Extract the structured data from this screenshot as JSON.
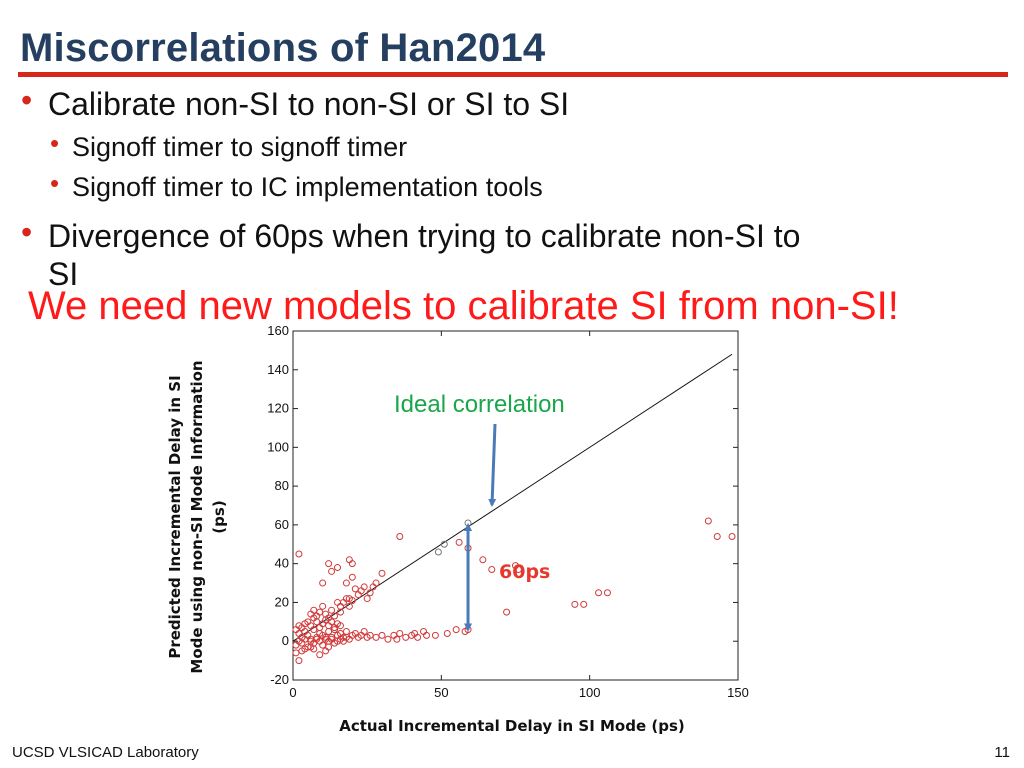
{
  "slide": {
    "title": "Miscorrelations of Han2014",
    "bullets": [
      {
        "level": 1,
        "text": "Calibrate non-SI to non-SI or SI to SI"
      },
      {
        "level": 2,
        "text": "Signoff timer to signoff timer"
      },
      {
        "level": 2,
        "text": "Signoff timer to IC implementation tools"
      },
      {
        "level": 1,
        "text": "Divergence of 60ps when trying to calibrate non-SI to",
        "continuation": "SI"
      }
    ],
    "callout": "We need new models to calibrate SI from non-SI!",
    "footer_left": "UCSD VLSICAD Laboratory",
    "page_number": "11",
    "colors": {
      "title": "#243f60",
      "accent_red": "#d9261c",
      "callout": "#ff1a1a",
      "annotation_green": "#1aa64b",
      "arrow_blue": "#4a7ab8",
      "gap_label": "#e8372c"
    }
  },
  "chart_data": {
    "type": "scatter",
    "xlabel": "Actual Incremental Delay in SI Mode (ps)",
    "ylabel_lines": [
      "Predicted Incremental Delay in SI",
      "Mode using non-SI Mode Information",
      "(ps)"
    ],
    "xlim": [
      0,
      150
    ],
    "ylim": [
      -20,
      160
    ],
    "x_ticks": [
      0,
      50,
      100,
      150
    ],
    "y_ticks": [
      -20,
      0,
      20,
      40,
      60,
      80,
      100,
      120,
      140,
      160
    ],
    "ideal_line": {
      "x": [
        0,
        148
      ],
      "y": [
        0,
        148
      ]
    },
    "annotations": {
      "ideal": "Ideal correlation",
      "gap": "60ps"
    },
    "gap_marker": {
      "x": 59,
      "y_from": 5,
      "y_to": 61
    },
    "points": [
      [
        2,
        4
      ],
      [
        3,
        2
      ],
      [
        4,
        5
      ],
      [
        5,
        3
      ],
      [
        6,
        1
      ],
      [
        7,
        6
      ],
      [
        8,
        2
      ],
      [
        9,
        4
      ],
      [
        10,
        3
      ],
      [
        11,
        1
      ],
      [
        12,
        5
      ],
      [
        13,
        2
      ],
      [
        14,
        6
      ],
      [
        15,
        3
      ],
      [
        16,
        4
      ],
      [
        17,
        2
      ],
      [
        18,
        5
      ],
      [
        19,
        1
      ],
      [
        20,
        3
      ],
      [
        21,
        4
      ],
      [
        22,
        2
      ],
      [
        23,
        3
      ],
      [
        24,
        5
      ],
      [
        25,
        2
      ],
      [
        26,
        3
      ],
      [
        1,
        -2
      ],
      [
        2,
        0
      ],
      [
        3,
        -1
      ],
      [
        4,
        1
      ],
      [
        5,
        -3
      ],
      [
        6,
        0
      ],
      [
        7,
        -1
      ],
      [
        8,
        1
      ],
      [
        9,
        0
      ],
      [
        10,
        -2
      ],
      [
        11,
        2
      ],
      [
        12,
        0
      ],
      [
        13,
        1
      ],
      [
        14,
        -1
      ],
      [
        15,
        0
      ],
      [
        16,
        1
      ],
      [
        17,
        0
      ],
      [
        18,
        2
      ],
      [
        1,
        6
      ],
      [
        2,
        8
      ],
      [
        3,
        7
      ],
      [
        4,
        9
      ],
      [
        5,
        10
      ],
      [
        6,
        8
      ],
      [
        7,
        12
      ],
      [
        8,
        10
      ],
      [
        9,
        7
      ],
      [
        10,
        9
      ],
      [
        11,
        11
      ],
      [
        12,
        8
      ],
      [
        13,
        10
      ],
      [
        14,
        7
      ],
      [
        15,
        9
      ],
      [
        16,
        8
      ],
      [
        6,
        14
      ],
      [
        7,
        16
      ],
      [
        8,
        13
      ],
      [
        9,
        15
      ],
      [
        10,
        18
      ],
      [
        11,
        14
      ],
      [
        12,
        12
      ],
      [
        13,
        16
      ],
      [
        14,
        13
      ],
      [
        15,
        20
      ],
      [
        16,
        15
      ],
      [
        18,
        22
      ],
      [
        19,
        18
      ],
      [
        20,
        21
      ],
      [
        22,
        24
      ],
      [
        24,
        28
      ],
      [
        25,
        22
      ],
      [
        26,
        25
      ],
      [
        28,
        30
      ],
      [
        30,
        35
      ],
      [
        2,
        45
      ],
      [
        10,
        30
      ],
      [
        12,
        40
      ],
      [
        13,
        36
      ],
      [
        15,
        38
      ],
      [
        18,
        30
      ],
      [
        19,
        42
      ],
      [
        20,
        40
      ],
      [
        20,
        33
      ],
      [
        21,
        27
      ],
      [
        19,
        22
      ],
      [
        16,
        18
      ],
      [
        17,
        20
      ],
      [
        23,
        26
      ],
      [
        27,
        28
      ],
      [
        1,
        -6
      ],
      [
        2,
        -10
      ],
      [
        3,
        -5
      ],
      [
        4,
        -4
      ],
      [
        6,
        -3
      ],
      [
        7,
        -4
      ],
      [
        9,
        -7
      ],
      [
        11,
        -5
      ],
      [
        12,
        -3
      ],
      [
        28,
        2
      ],
      [
        30,
        3
      ],
      [
        32,
        1
      ],
      [
        34,
        3
      ],
      [
        35,
        1
      ],
      [
        36,
        4
      ],
      [
        38,
        2
      ],
      [
        40,
        3
      ],
      [
        41,
        4
      ],
      [
        42,
        2
      ],
      [
        44,
        5
      ],
      [
        45,
        3
      ],
      [
        48,
        3
      ],
      [
        52,
        4
      ],
      [
        55,
        6
      ],
      [
        58,
        5
      ],
      [
        59,
        6
      ],
      [
        36,
        54
      ],
      [
        49,
        46
      ],
      [
        51,
        50
      ],
      [
        56,
        51
      ],
      [
        59,
        61
      ],
      [
        59,
        48
      ],
      [
        64,
        42
      ],
      [
        67,
        37
      ],
      [
        72,
        15
      ],
      [
        75,
        39
      ],
      [
        76,
        37
      ],
      [
        95,
        19
      ],
      [
        98,
        19
      ],
      [
        103,
        25
      ],
      [
        106,
        25
      ],
      [
        140,
        62
      ],
      [
        143,
        54
      ],
      [
        148,
        54
      ]
    ]
  }
}
